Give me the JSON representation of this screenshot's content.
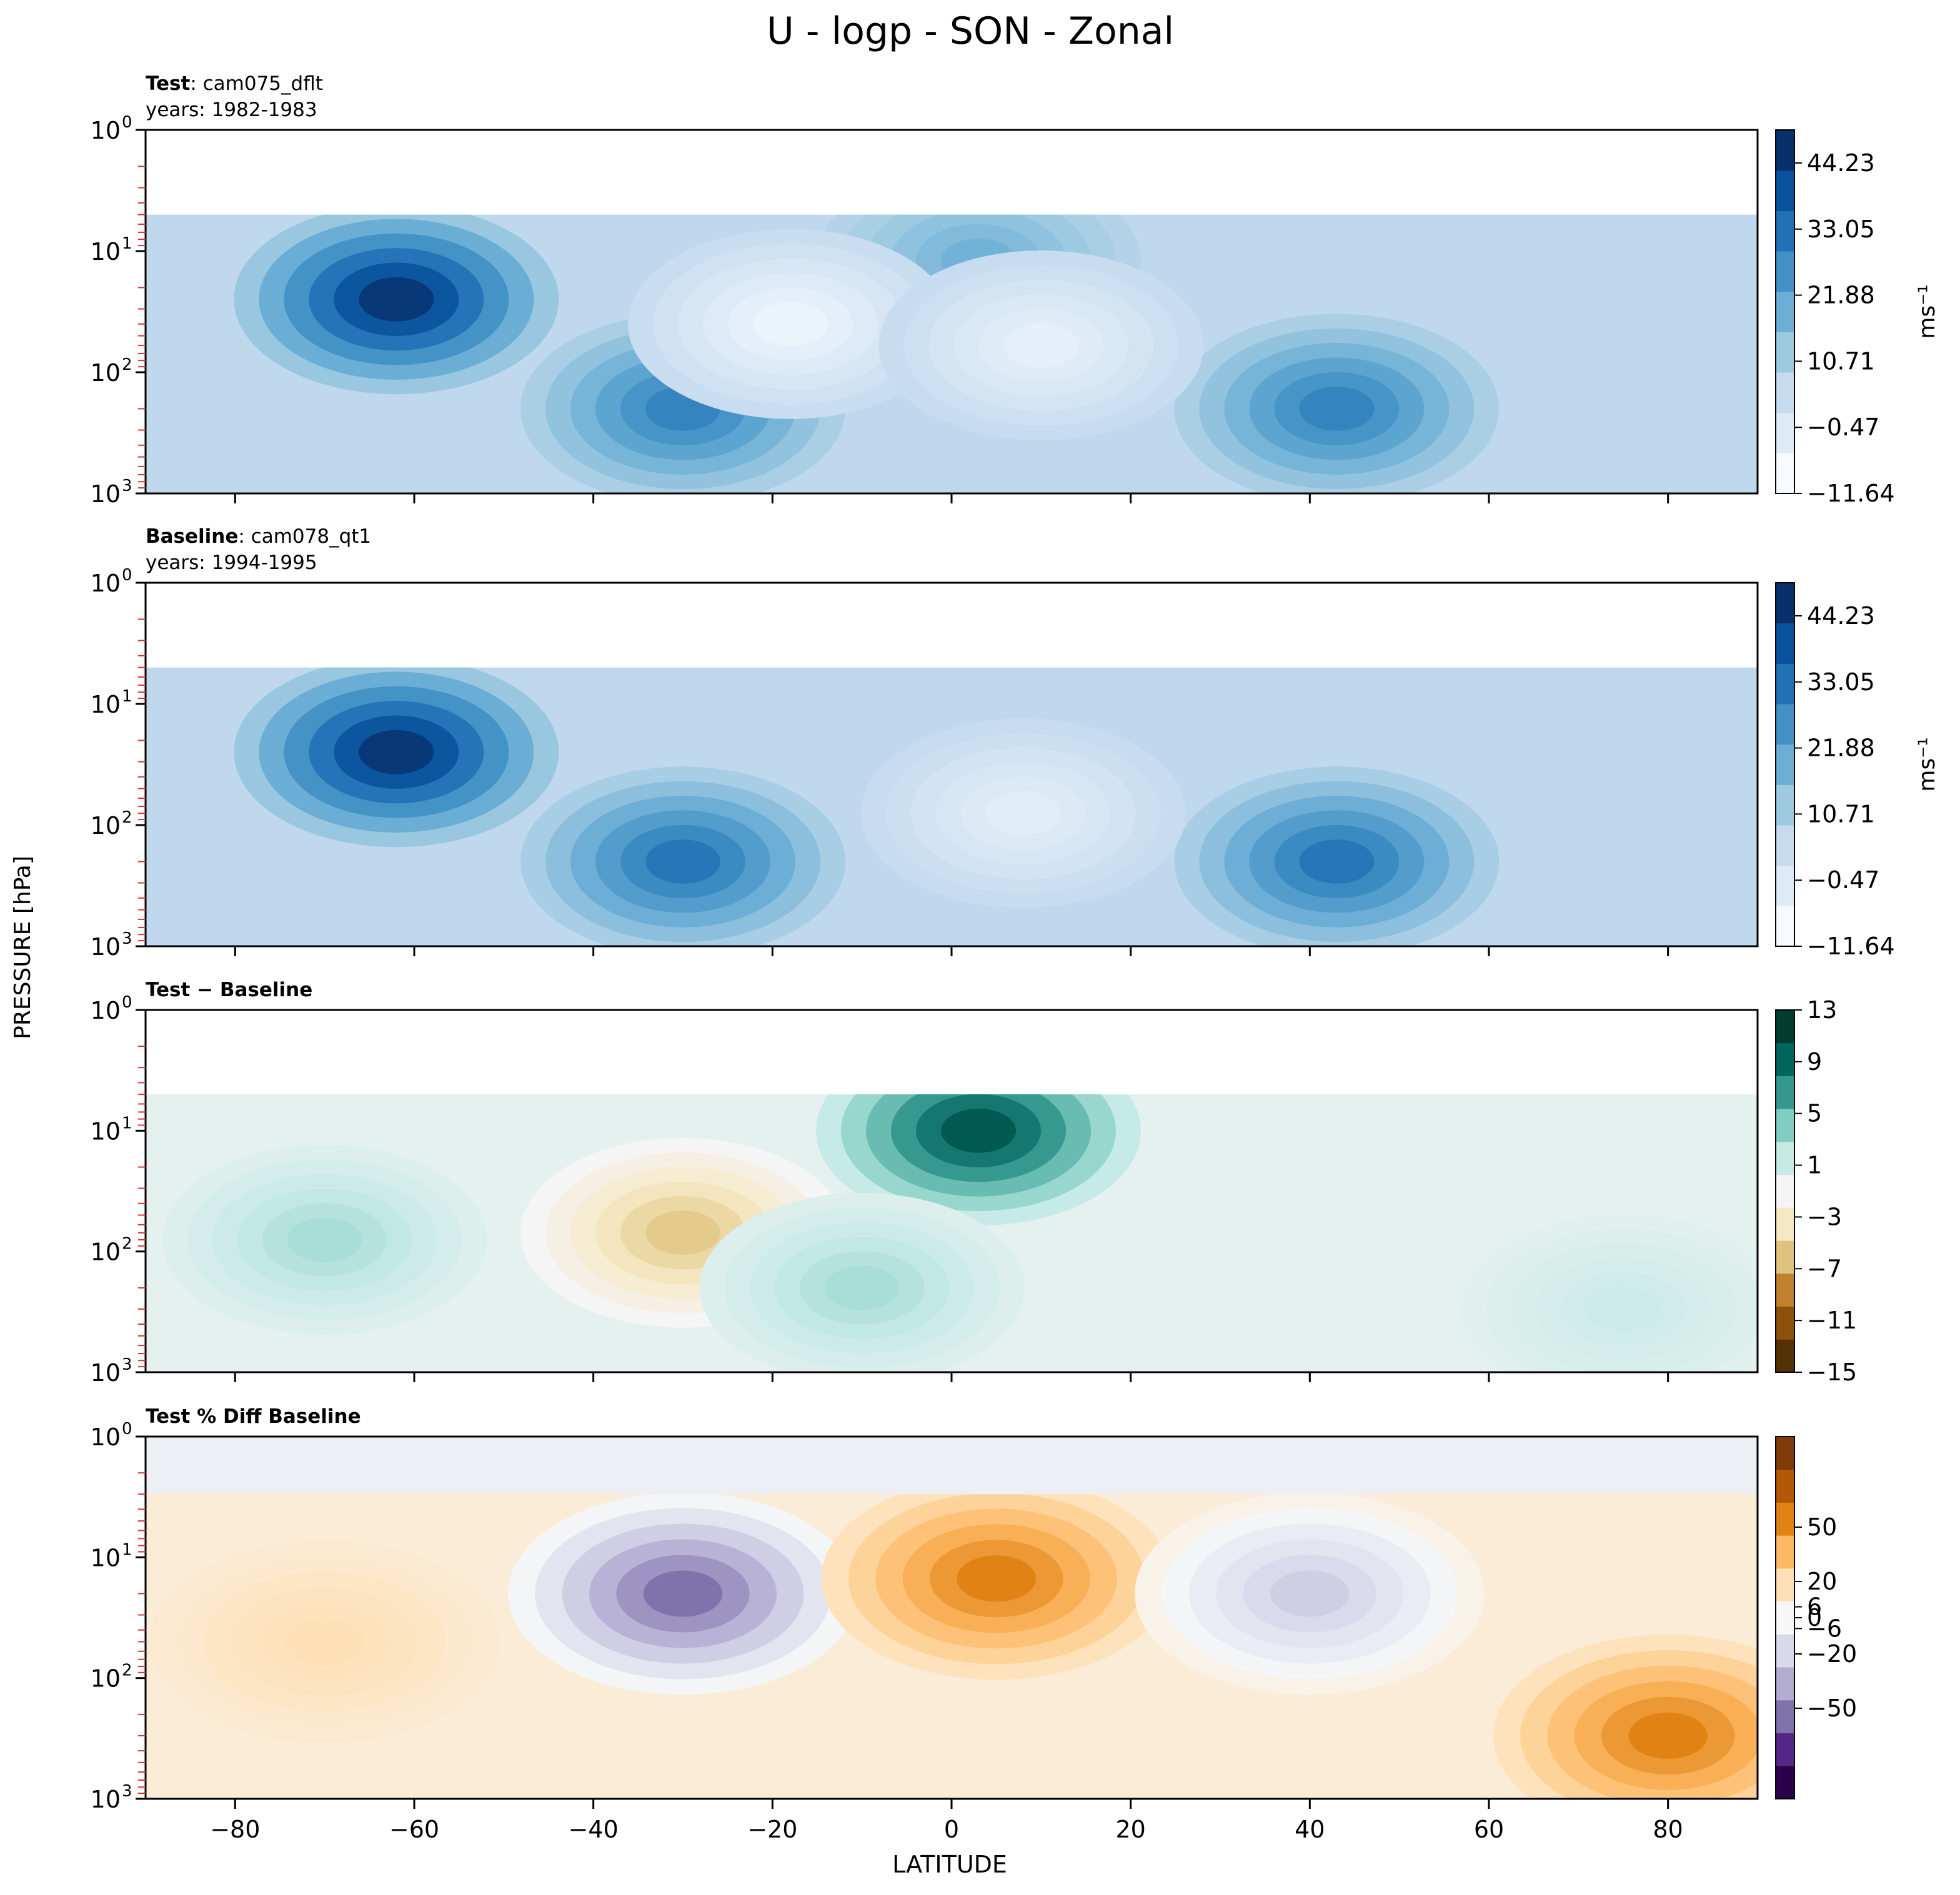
{
  "figure": {
    "title": "U - logp - SON - Zonal",
    "ylabel": "PRESSURE [hPa]",
    "xlabel": "LATITUDE"
  },
  "chart_data": [
    {
      "type": "heatmap",
      "panel_label_bold": "Test",
      "panel_label_rest": ": cam075_dflt",
      "subtitle": "years: 1982-1983",
      "colorbar_ticks": [
        "44.23",
        "33.05",
        "21.88",
        "10.71",
        "−0.47",
        "−11.64"
      ],
      "colorbar_values": [
        44.23,
        33.05,
        21.88,
        10.71,
        -0.47,
        -11.64
      ],
      "colorbar_range": [
        -11.64,
        49.82
      ],
      "colorbar_label": "ms⁻¹",
      "colormap": [
        "#f7fbff",
        "#deebf7",
        "#c6dbef",
        "#9ecae1",
        "#6baed6",
        "#4292c6",
        "#2171b5",
        "#08519c",
        "#08306b"
      ],
      "xlim": [
        -90,
        90
      ],
      "ylim": [
        1000,
        1
      ],
      "yscale": "log",
      "features": [
        {
          "lat": -62,
          "p": 25,
          "u": 48,
          "desc": "southern jet core"
        },
        {
          "lat": -30,
          "p": 200,
          "u": 30
        },
        {
          "lat": 43,
          "p": 200,
          "u": 30
        },
        {
          "lat": 3,
          "p": 12,
          "u": 18
        },
        {
          "lat": -18,
          "p": 40,
          "u": -8
        },
        {
          "lat": 10,
          "p": 60,
          "u": -6
        }
      ]
    },
    {
      "type": "heatmap",
      "panel_label_bold": "Baseline",
      "panel_label_rest": ": cam078_qt1",
      "subtitle": "years: 1994-1995",
      "colorbar_ticks": [
        "44.23",
        "33.05",
        "21.88",
        "10.71",
        "−0.47",
        "−11.64"
      ],
      "colorbar_values": [
        44.23,
        33.05,
        21.88,
        10.71,
        -0.47,
        -11.64
      ],
      "colorbar_range": [
        -11.64,
        49.82
      ],
      "colorbar_label": "ms⁻¹",
      "colormap": [
        "#f7fbff",
        "#deebf7",
        "#c6dbef",
        "#9ecae1",
        "#6baed6",
        "#4292c6",
        "#2171b5",
        "#08519c",
        "#08306b"
      ],
      "xlim": [
        -90,
        90
      ],
      "ylim": [
        1000,
        1
      ],
      "yscale": "log",
      "features": [
        {
          "lat": -62,
          "p": 25,
          "u": 48
        },
        {
          "lat": -30,
          "p": 200,
          "u": 33
        },
        {
          "lat": 43,
          "p": 200,
          "u": 33
        },
        {
          "lat": 8,
          "p": 80,
          "u": -5
        }
      ]
    },
    {
      "type": "heatmap",
      "panel_label_bold": "Test − Baseline",
      "colorbar_ticks": [
        "13",
        "9",
        "5",
        "1",
        "−3",
        "−7",
        "−11",
        "−15"
      ],
      "colorbar_values": [
        13,
        9,
        5,
        1,
        -3,
        -7,
        -11,
        -15
      ],
      "colorbar_range": [
        -15,
        13
      ],
      "colormap": [
        "#543005",
        "#8c510a",
        "#bf812d",
        "#dfc27d",
        "#f6e8c3",
        "#f5f5f5",
        "#c7eae5",
        "#80cdc1",
        "#35978f",
        "#01665e",
        "#003c30"
      ],
      "xlim": [
        -90,
        90
      ],
      "ylim": [
        1000,
        1
      ],
      "yscale": "log",
      "features": [
        {
          "lat": 3,
          "p": 10,
          "diff": 11
        },
        {
          "lat": -30,
          "p": 70,
          "diff": -6
        },
        {
          "lat": -70,
          "p": 80,
          "diff": 3
        },
        {
          "lat": -10,
          "p": 200,
          "diff": 3
        },
        {
          "lat": 75,
          "p": 300,
          "diff": 1.5
        }
      ]
    },
    {
      "type": "heatmap",
      "panel_label_bold": "Test % Diff Baseline",
      "colorbar_ticks": [
        "50",
        "20",
        "6",
        "0",
        "−6",
        "−20",
        "−50"
      ],
      "colorbar_values": [
        50,
        20,
        6,
        0,
        -6,
        -20,
        -50
      ],
      "colorbar_range": [
        -100,
        100
      ],
      "colormap": [
        "#2d004b",
        "#542788",
        "#8073ac",
        "#b2abd2",
        "#d8daeb",
        "#f7f7f7",
        "#fee0b6",
        "#fdb863",
        "#e08214",
        "#b35806",
        "#7f3b08"
      ],
      "xlim": [
        -90,
        90
      ],
      "ylim": [
        1000,
        1
      ],
      "yscale": "log",
      "x_ticks": [
        -80,
        -60,
        -40,
        -20,
        0,
        20,
        40,
        60,
        80
      ],
      "features": [
        {
          "lat": -30,
          "p": 20,
          "pct": -60
        },
        {
          "lat": 5,
          "p": 15,
          "pct": 60
        },
        {
          "lat": 40,
          "p": 20,
          "pct": -25
        },
        {
          "lat": -70,
          "p": 50,
          "pct": 20
        },
        {
          "lat": 80,
          "p": 300,
          "pct": 60
        }
      ]
    }
  ],
  "y_ticks": [
    "10",
    "10",
    "10",
    "10"
  ],
  "y_tick_exps": [
    "0",
    "1",
    "2",
    "3"
  ],
  "x_tick_labels": [
    "−80",
    "−60",
    "−40",
    "−20",
    "0",
    "20",
    "40",
    "60",
    "80"
  ]
}
